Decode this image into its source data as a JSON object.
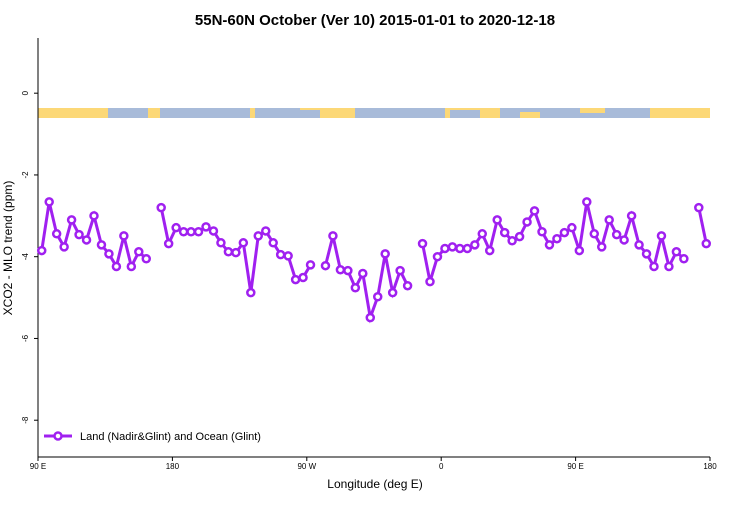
{
  "chart_data": {
    "type": "line",
    "title": "55N-60N October (Ver 10)   2015-01-01 to 2020-12-18",
    "x_label": "Longitude (deg E)",
    "y_label": "XCO2 - MLO trend (ppm)",
    "xlim": [
      90,
      540
    ],
    "xticks": [
      {
        "value": 90,
        "label": "90 E"
      },
      {
        "value": 180,
        "label": "180"
      },
      {
        "value": 270,
        "label": "90 W"
      },
      {
        "value": 360,
        "label": "0"
      },
      {
        "value": 450,
        "label": "90 E"
      },
      {
        "value": 540,
        "label": "180"
      }
    ],
    "ylim": [
      -8.9,
      1.35
    ],
    "yticks": [
      0,
      -2,
      -4,
      -6,
      -8
    ],
    "legend": "bottom-left",
    "x": [
      92.5,
      97.5,
      102.5,
      107.5,
      112.5,
      117.5,
      122.5,
      127.5,
      132.5,
      137.5,
      142.5,
      147.5,
      152.5,
      157.5,
      162.5,
      167.5,
      172.5,
      177.5,
      182.5,
      187.5,
      192.5,
      197.5,
      202.5,
      207.5,
      212.5,
      217.5,
      222.5,
      227.5,
      232.5,
      237.5,
      242.5,
      247.5,
      252.5,
      257.5,
      262.5,
      267.5,
      272.5,
      277.5,
      282.5,
      287.5,
      292.5,
      297.5,
      302.5,
      307.5,
      312.5,
      317.5,
      322.5,
      327.5,
      332.5,
      337.5,
      342.5,
      347.5,
      352.5,
      357.5,
      362.5,
      367.5,
      372.5,
      377.5,
      382.5,
      387.5,
      392.5,
      397.5,
      402.5,
      407.5,
      412.5,
      417.5,
      422.5,
      427.5,
      432.5,
      437.5,
      442.5,
      447.5,
      452.5,
      457.5,
      462.5,
      467.5,
      472.5,
      477.5,
      482.5,
      487.5,
      492.5,
      497.5,
      502.5,
      507.5,
      512.5,
      517.5,
      522.5,
      527.5,
      532.5,
      537.5
    ],
    "series": [
      {
        "name": "Land (Nadir&Glint) and Ocean (Glint)",
        "color": "#a020f0",
        "values": [
          -3.85,
          -2.66,
          -3.44,
          -3.76,
          -3.1,
          -3.46,
          -3.59,
          -3.0,
          -3.71,
          -3.93,
          -4.24,
          -3.49,
          -4.24,
          -3.88,
          -4.05,
          null,
          -2.8,
          -3.68,
          -3.29,
          -3.39,
          -3.39,
          -3.39,
          -3.27,
          -3.37,
          -3.66,
          -3.88,
          -3.9,
          -3.66,
          -4.88,
          -3.49,
          -3.37,
          -3.66,
          -3.95,
          -3.98,
          -4.56,
          -4.51,
          -4.2,
          null,
          -4.22,
          -3.49,
          -4.32,
          -4.34,
          -4.76,
          -4.41,
          -5.49,
          -4.98,
          -3.93,
          -4.88,
          -4.34,
          -4.71,
          null,
          -3.68,
          -4.61,
          -4.0,
          -3.8,
          -3.76,
          -3.8,
          -3.8,
          -3.71,
          -3.44,
          -3.85,
          -3.1,
          -3.41,
          -3.61,
          -3.51,
          -3.15,
          -2.88,
          -3.39,
          -3.71,
          -3.56,
          -3.41,
          -3.29,
          -3.85,
          -2.66,
          -3.44,
          -3.76,
          -3.1,
          -3.46,
          -3.59,
          -3.0,
          -3.71,
          -3.93,
          -4.24,
          -3.49,
          -4.24,
          -3.88,
          -4.05,
          null,
          -2.8,
          -3.68
        ]
      }
    ]
  }
}
